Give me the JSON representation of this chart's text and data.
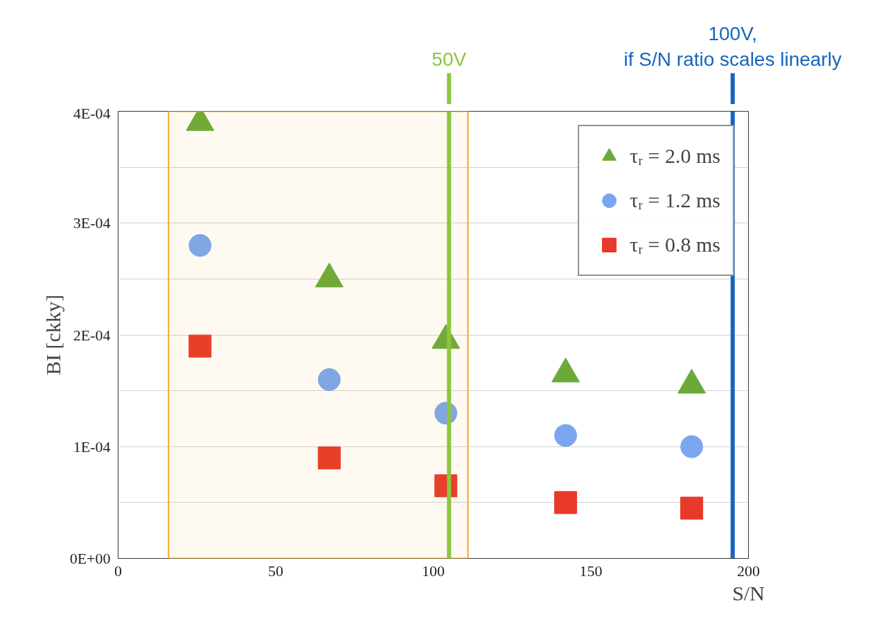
{
  "chart_data": {
    "type": "scatter",
    "xlabel": "S/N",
    "ylabel": "BI [ckky]",
    "xlim": [
      0,
      200
    ],
    "xticks": [
      0,
      50,
      100,
      150,
      200
    ],
    "ylim": [
      0,
      0.0004
    ],
    "yticks": [
      {
        "value": 0,
        "label": "0E+00"
      },
      {
        "value": 5e-05,
        "label": null
      },
      {
        "value": 0.0001,
        "label": "1E-04"
      },
      {
        "value": 0.00015,
        "label": null
      },
      {
        "value": 0.0002,
        "label": "2E-04"
      },
      {
        "value": 0.00025,
        "label": null
      },
      {
        "value": 0.0003,
        "label": "3E-04"
      },
      {
        "value": 0.00035,
        "label": null
      },
      {
        "value": 0.0004,
        "label": "4E-04"
      }
    ],
    "grid": "y",
    "legend": "top right",
    "series": [
      {
        "name": "τᵣ = 2.0 ms",
        "color": "#6aaa3a",
        "marker": "triangle",
        "x": [
          26,
          67,
          104,
          142,
          182
        ],
        "values": [
          0.00039,
          0.00025,
          0.000195,
          0.000165,
          0.000155
        ]
      },
      {
        "name": "τᵣ = 1.2 ms",
        "color": "#7aa6f0",
        "marker": "circle",
        "x": [
          26,
          67,
          104,
          142,
          182
        ],
        "values": [
          0.00028,
          0.00016,
          0.00013,
          0.00011,
          0.0001
        ]
      },
      {
        "name": "τᵣ = 0.8 ms",
        "color": "#e8392a",
        "marker": "square",
        "x": [
          26,
          67,
          104,
          142,
          182
        ],
        "values": [
          0.00019,
          9e-05,
          6.5e-05,
          5e-05,
          4.5e-05
        ]
      }
    ],
    "ref_lines": [
      {
        "axis": "x",
        "value": 105,
        "label": "50V",
        "color": "#8cc63f"
      },
      {
        "axis": "x",
        "value": 195,
        "label": "100V, if S/N ratio scales linearly",
        "color": "#1565c0"
      }
    ],
    "bands": [
      {
        "axis": "x",
        "from": 16,
        "to": 111,
        "label": null,
        "color": "#f5a623"
      }
    ]
  }
}
